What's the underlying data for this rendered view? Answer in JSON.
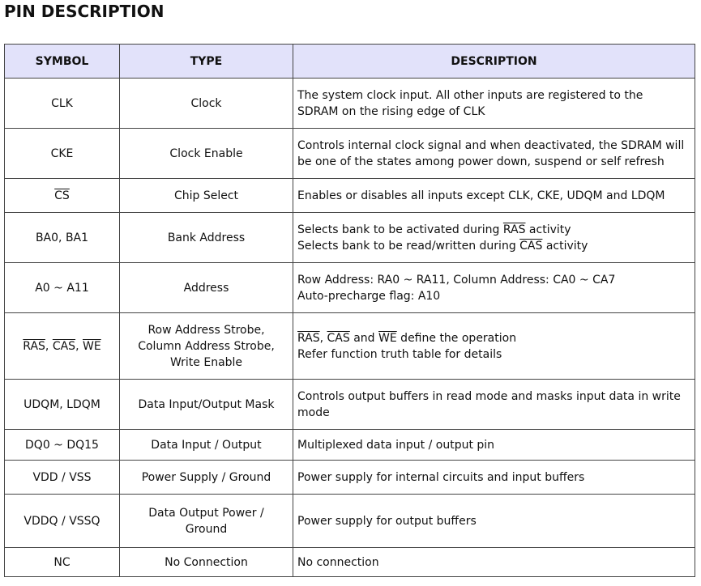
{
  "title": "PIN DESCRIPTION",
  "headers": [
    "SYMBOL",
    "TYPE",
    "DESCRIPTION"
  ],
  "rows": [
    {
      "h": 62,
      "symbol": [
        [
          {
            "t": "CLK"
          }
        ]
      ],
      "type": [
        "Clock"
      ],
      "desc": [
        [
          {
            "t": "The system clock input. All other inputs are registered to the"
          }
        ],
        [
          {
            "t": "SDRAM on the rising edge of CLK"
          }
        ]
      ]
    },
    {
      "h": 62,
      "symbol": [
        [
          {
            "t": "CKE"
          }
        ]
      ],
      "type": [
        "Clock Enable"
      ],
      "desc": [
        [
          {
            "t": "Controls internal clock signal and when deactivated, the SDRAM will"
          }
        ],
        [
          {
            "t": "be one of the states among power down, suspend or self refresh"
          }
        ]
      ]
    },
    {
      "h": 42,
      "symbol": [
        [
          {
            "t": "CS",
            "o": true
          }
        ]
      ],
      "type": [
        "Chip Select"
      ],
      "desc": [
        [
          {
            "t": "Enables or disables all inputs except CLK, CKE, UDQM and LDQM"
          }
        ]
      ]
    },
    {
      "h": 62,
      "symbol": [
        [
          {
            "t": "BA0, BA1"
          }
        ]
      ],
      "type": [
        "Bank Address"
      ],
      "desc": [
        [
          {
            "t": "Selects bank to be activated during "
          },
          {
            "t": "RAS",
            "o": true
          },
          {
            "t": " activity"
          }
        ],
        [
          {
            "t": "Selects bank to be read/written during "
          },
          {
            "t": "CAS",
            "o": true
          },
          {
            "t": " activity"
          }
        ]
      ]
    },
    {
      "h": 62,
      "symbol": [
        [
          {
            "t": "A0 ~ A11"
          }
        ]
      ],
      "type": [
        "Address"
      ],
      "desc": [
        [
          {
            "t": "Row Address: RA0 ~ RA11, Column Address: CA0 ~ CA7"
          }
        ],
        [
          {
            "t": "Auto-precharge flag: A10"
          }
        ]
      ]
    },
    {
      "h": 82,
      "symbol": [
        [
          {
            "t": "RAS",
            "o": true
          },
          {
            "t": ", "
          },
          {
            "t": "CAS",
            "o": true
          },
          {
            "t": ", "
          },
          {
            "t": "WE",
            "o": true
          }
        ]
      ],
      "type": [
        "Row Address Strobe,",
        "Column Address Strobe,",
        "Write Enable"
      ],
      "desc": [
        [
          {
            "t": "RAS",
            "o": true
          },
          {
            "t": ", "
          },
          {
            "t": "CAS",
            "o": true
          },
          {
            "t": " and "
          },
          {
            "t": "WE",
            "o": true
          },
          {
            "t": " define the operation"
          }
        ],
        [
          {
            "t": "Refer function truth table for details"
          }
        ]
      ]
    },
    {
      "h": 62,
      "symbol": [
        [
          {
            "t": "UDQM, LDQM"
          }
        ]
      ],
      "type": [
        "Data Input/Output Mask"
      ],
      "desc": [
        [
          {
            "t": "Controls output buffers in read mode and masks input data in write"
          }
        ],
        [
          {
            "t": "mode"
          }
        ]
      ]
    },
    {
      "h": 38,
      "symbol": [
        [
          {
            "t": "DQ0 ~ DQ15"
          }
        ]
      ],
      "type": [
        "Data Input / Output"
      ],
      "desc": [
        [
          {
            "t": "Multiplexed data input / output pin"
          }
        ]
      ]
    },
    {
      "h": 42,
      "symbol": [
        [
          {
            "t": "VDD / VSS"
          }
        ]
      ],
      "type": [
        "Power Supply / Ground"
      ],
      "desc": [
        [
          {
            "t": "Power supply for internal circuits and input buffers"
          }
        ]
      ]
    },
    {
      "h": 66,
      "symbol": [
        [
          {
            "t": "VDDQ / VSSQ"
          }
        ]
      ],
      "type": [
        "Data Output Power /",
        "Ground"
      ],
      "desc": [
        [
          {
            "t": "Power supply for output buffers"
          }
        ]
      ]
    },
    {
      "h": 36,
      "symbol": [
        [
          {
            "t": "NC"
          }
        ]
      ],
      "type": [
        "No Connection"
      ],
      "desc": [
        [
          {
            "t": "No connection"
          }
        ]
      ]
    }
  ]
}
